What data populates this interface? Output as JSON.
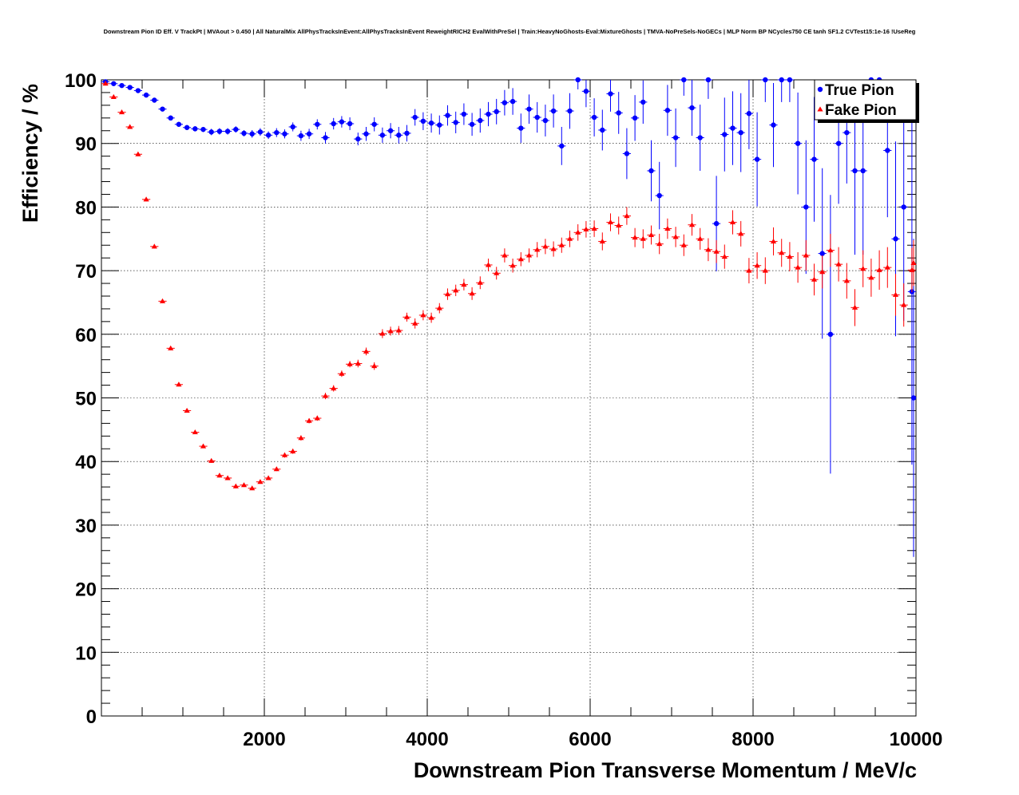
{
  "chart_data": {
    "type": "scatter",
    "title": "Downstream Pion ID Eff. V TrackPt | MVAout > 0.450 | All NaturalMix AllPhysTracksInEvent:AllPhysTracksInEvent ReweightRICH2 EvalWithPreSel | Train:HeavyNoGhosts-Eval:MixtureGhosts | TMVA-NoPreSels-NoGECs | MLP Norm BP NCycles750 CE tanh SF1.2 CVTest15:1e-16 !UseReg",
    "xlabel": "Downstream Pion Transverse Momentum / MeV/c",
    "ylabel": "Efficiency / %",
    "xlim": [
      0,
      10000
    ],
    "ylim": [
      0,
      100
    ],
    "xticks": [
      2000,
      4000,
      6000,
      8000,
      10000
    ],
    "yticks": [
      0,
      10,
      20,
      30,
      40,
      50,
      60,
      70,
      80,
      90,
      100
    ],
    "grid": true,
    "legend_position": "top-right",
    "series": [
      {
        "name": "True Pion",
        "color": "#0000ff",
        "marker": "circle",
        "points": [
          [
            50,
            99.7,
            0.1
          ],
          [
            150,
            99.4,
            0.2
          ],
          [
            250,
            99.1,
            0.2
          ],
          [
            350,
            98.8,
            0.2
          ],
          [
            450,
            98.3,
            0.3
          ],
          [
            550,
            97.6,
            0.3
          ],
          [
            650,
            96.8,
            0.3
          ],
          [
            750,
            95.4,
            0.3
          ],
          [
            850,
            94.0,
            0.4
          ],
          [
            950,
            93.0,
            0.4
          ],
          [
            1050,
            92.5,
            0.4
          ],
          [
            1150,
            92.3,
            0.4
          ],
          [
            1250,
            92.2,
            0.4
          ],
          [
            1350,
            91.8,
            0.5
          ],
          [
            1450,
            91.9,
            0.5
          ],
          [
            1550,
            91.9,
            0.5
          ],
          [
            1650,
            92.2,
            0.5
          ],
          [
            1750,
            91.6,
            0.5
          ],
          [
            1850,
            91.5,
            0.6
          ],
          [
            1950,
            91.8,
            0.6
          ],
          [
            2050,
            91.3,
            0.6
          ],
          [
            2150,
            91.7,
            0.7
          ],
          [
            2250,
            91.5,
            0.7
          ],
          [
            2350,
            92.6,
            0.7
          ],
          [
            2450,
            91.2,
            0.8
          ],
          [
            2550,
            91.5,
            0.8
          ],
          [
            2650,
            93.0,
            0.8
          ],
          [
            2750,
            90.9,
            0.9
          ],
          [
            2850,
            93.1,
            0.9
          ],
          [
            2950,
            93.4,
            0.9
          ],
          [
            3050,
            93.1,
            1.0
          ],
          [
            3150,
            90.7,
            1.0
          ],
          [
            3250,
            91.5,
            1.1
          ],
          [
            3350,
            93.0,
            1.1
          ],
          [
            3450,
            91.3,
            1.2
          ],
          [
            3550,
            92.0,
            1.2
          ],
          [
            3650,
            91.3,
            1.3
          ],
          [
            3750,
            91.6,
            1.3
          ],
          [
            3850,
            94.1,
            1.3
          ],
          [
            3950,
            93.5,
            1.4
          ],
          [
            4050,
            93.2,
            1.5
          ],
          [
            4150,
            92.9,
            1.5
          ],
          [
            4250,
            94.4,
            1.6
          ],
          [
            4350,
            93.3,
            1.7
          ],
          [
            4450,
            94.6,
            1.7
          ],
          [
            4550,
            93.0,
            1.8
          ],
          [
            4650,
            93.6,
            1.9
          ],
          [
            4750,
            94.6,
            1.9
          ],
          [
            4850,
            95.0,
            2.0
          ],
          [
            4950,
            96.4,
            2.0
          ],
          [
            5050,
            96.6,
            2.1
          ],
          [
            5150,
            92.4,
            2.3
          ],
          [
            5250,
            95.4,
            2.3
          ],
          [
            5350,
            94.1,
            2.4
          ],
          [
            5450,
            93.6,
            2.5
          ],
          [
            5550,
            95.1,
            2.6
          ],
          [
            5650,
            89.6,
            3.0
          ],
          [
            5750,
            95.1,
            2.8
          ],
          [
            5850,
            100,
            1.5
          ],
          [
            5950,
            98.2,
            2.5
          ],
          [
            6050,
            94.1,
            3.0
          ],
          [
            6150,
            92.1,
            3.2
          ],
          [
            6250,
            97.8,
            2.8
          ],
          [
            6350,
            94.8,
            3.3
          ],
          [
            6450,
            88.4,
            4.0
          ],
          [
            6550,
            94.0,
            3.6
          ],
          [
            6650,
            96.5,
            3.4
          ],
          [
            6750,
            85.7,
            4.8
          ],
          [
            6850,
            81.8,
            5.3
          ],
          [
            6950,
            95.2,
            4.0
          ],
          [
            7050,
            90.9,
            4.6
          ],
          [
            7150,
            100,
            2.5
          ],
          [
            7250,
            95.6,
            4.4
          ],
          [
            7350,
            90.9,
            5.2
          ],
          [
            7450,
            100,
            3.0
          ],
          [
            7550,
            77.4,
            7.5
          ],
          [
            7650,
            91.4,
            5.8
          ],
          [
            7750,
            92.4,
            5.8
          ],
          [
            7850,
            91.7,
            6.2
          ],
          [
            7950,
            94.7,
            5.6
          ],
          [
            8050,
            87.5,
            7.4
          ],
          [
            8150,
            100,
            3.5
          ],
          [
            8250,
            92.9,
            6.6
          ],
          [
            8350,
            100,
            3.5
          ],
          [
            8450,
            100,
            3.5
          ],
          [
            8550,
            90.0,
            8.0
          ],
          [
            8650,
            80.0,
            10.5
          ],
          [
            8750,
            87.5,
            9.8
          ],
          [
            8850,
            72.7,
            13.4
          ],
          [
            8950,
            60.0,
            21.9
          ],
          [
            9050,
            90.0,
            9.5
          ],
          [
            9150,
            91.7,
            8.0
          ],
          [
            9250,
            85.7,
            13.2
          ],
          [
            9350,
            85.7,
            13.2
          ],
          [
            9450,
            100,
            5.0
          ],
          [
            9550,
            100,
            5.0
          ],
          [
            9650,
            88.9,
            10.5
          ],
          [
            9750,
            75.0,
            15.3
          ],
          [
            9850,
            80.0,
            17.9
          ],
          [
            9950,
            66.7,
            27.2
          ],
          [
            10050,
            50.0,
            25.0
          ]
        ]
      },
      {
        "name": "Fake Pion",
        "color": "#ff0000",
        "marker": "triangle",
        "points": [
          [
            50,
            99.4,
            0.2
          ],
          [
            150,
            97.3,
            0.2
          ],
          [
            250,
            94.9,
            0.3
          ],
          [
            350,
            92.6,
            0.3
          ],
          [
            450,
            88.3,
            0.3
          ],
          [
            550,
            81.2,
            0.3
          ],
          [
            650,
            73.8,
            0.3
          ],
          [
            750,
            65.2,
            0.3
          ],
          [
            850,
            57.8,
            0.3
          ],
          [
            950,
            52.1,
            0.3
          ],
          [
            1050,
            48.0,
            0.3
          ],
          [
            1150,
            44.6,
            0.3
          ],
          [
            1250,
            42.4,
            0.3
          ],
          [
            1350,
            40.1,
            0.3
          ],
          [
            1450,
            37.8,
            0.3
          ],
          [
            1550,
            37.4,
            0.3
          ],
          [
            1650,
            36.1,
            0.3
          ],
          [
            1750,
            36.3,
            0.3
          ],
          [
            1850,
            35.8,
            0.3
          ],
          [
            1950,
            36.8,
            0.3
          ],
          [
            2050,
            37.4,
            0.3
          ],
          [
            2150,
            38.8,
            0.3
          ],
          [
            2250,
            41.0,
            0.4
          ],
          [
            2350,
            41.6,
            0.4
          ],
          [
            2450,
            43.7,
            0.4
          ],
          [
            2550,
            46.4,
            0.4
          ],
          [
            2650,
            46.8,
            0.4
          ],
          [
            2750,
            50.3,
            0.5
          ],
          [
            2850,
            51.5,
            0.5
          ],
          [
            2950,
            53.8,
            0.5
          ],
          [
            3050,
            55.3,
            0.5
          ],
          [
            3150,
            55.4,
            0.6
          ],
          [
            3250,
            57.3,
            0.6
          ],
          [
            3350,
            55.0,
            0.6
          ],
          [
            3450,
            60.1,
            0.7
          ],
          [
            3550,
            60.5,
            0.7
          ],
          [
            3650,
            60.6,
            0.7
          ],
          [
            3750,
            62.7,
            0.7
          ],
          [
            3850,
            61.7,
            0.8
          ],
          [
            3950,
            63.0,
            0.8
          ],
          [
            4050,
            62.6,
            0.8
          ],
          [
            4150,
            64.1,
            0.8
          ],
          [
            4250,
            66.3,
            0.9
          ],
          [
            4350,
            66.9,
            0.9
          ],
          [
            4450,
            67.8,
            0.9
          ],
          [
            4550,
            66.4,
            1.0
          ],
          [
            4650,
            68.1,
            1.0
          ],
          [
            4750,
            70.9,
            1.0
          ],
          [
            4850,
            69.6,
            1.0
          ],
          [
            4950,
            72.4,
            1.1
          ],
          [
            5050,
            70.8,
            1.1
          ],
          [
            5150,
            71.8,
            1.1
          ],
          [
            5250,
            72.4,
            1.1
          ],
          [
            5350,
            73.3,
            1.2
          ],
          [
            5450,
            73.8,
            1.2
          ],
          [
            5550,
            73.4,
            1.2
          ],
          [
            5650,
            74.0,
            1.2
          ],
          [
            5750,
            75.0,
            1.3
          ],
          [
            5850,
            76.0,
            1.3
          ],
          [
            5950,
            76.5,
            1.3
          ],
          [
            6050,
            76.6,
            1.3
          ],
          [
            6150,
            74.6,
            1.4
          ],
          [
            6250,
            77.6,
            1.4
          ],
          [
            6350,
            77.1,
            1.4
          ],
          [
            6450,
            78.6,
            1.4
          ],
          [
            6550,
            75.2,
            1.5
          ],
          [
            6650,
            75.0,
            1.5
          ],
          [
            6750,
            75.6,
            1.5
          ],
          [
            6850,
            74.2,
            1.6
          ],
          [
            6950,
            76.6,
            1.6
          ],
          [
            7050,
            75.3,
            1.6
          ],
          [
            7150,
            74.0,
            1.7
          ],
          [
            7250,
            77.2,
            1.7
          ],
          [
            7350,
            75.0,
            1.7
          ],
          [
            7450,
            73.3,
            1.8
          ],
          [
            7550,
            73.0,
            1.8
          ],
          [
            7650,
            72.2,
            1.9
          ],
          [
            7750,
            77.6,
            1.9
          ],
          [
            7850,
            75.8,
            2.0
          ],
          [
            7950,
            70.0,
            2.0
          ],
          [
            8050,
            70.8,
            2.1
          ],
          [
            8150,
            70.0,
            2.1
          ],
          [
            8250,
            74.6,
            2.2
          ],
          [
            8350,
            72.8,
            2.2
          ],
          [
            8450,
            72.2,
            2.3
          ],
          [
            8550,
            70.5,
            2.4
          ],
          [
            8650,
            72.4,
            2.4
          ],
          [
            8750,
            68.6,
            2.5
          ],
          [
            8850,
            69.8,
            2.6
          ],
          [
            8950,
            73.2,
            2.6
          ],
          [
            9050,
            71.0,
            2.7
          ],
          [
            9150,
            68.4,
            2.8
          ],
          [
            9250,
            64.2,
            2.9
          ],
          [
            9350,
            70.3,
            2.9
          ],
          [
            9450,
            68.9,
            3.0
          ],
          [
            9550,
            70.1,
            3.1
          ],
          [
            9650,
            70.5,
            3.2
          ],
          [
            9750,
            66.2,
            3.3
          ],
          [
            9850,
            64.6,
            3.4
          ],
          [
            9950,
            70.1,
            3.5
          ],
          [
            10050,
            71.2,
            3.6
          ]
        ]
      }
    ]
  }
}
